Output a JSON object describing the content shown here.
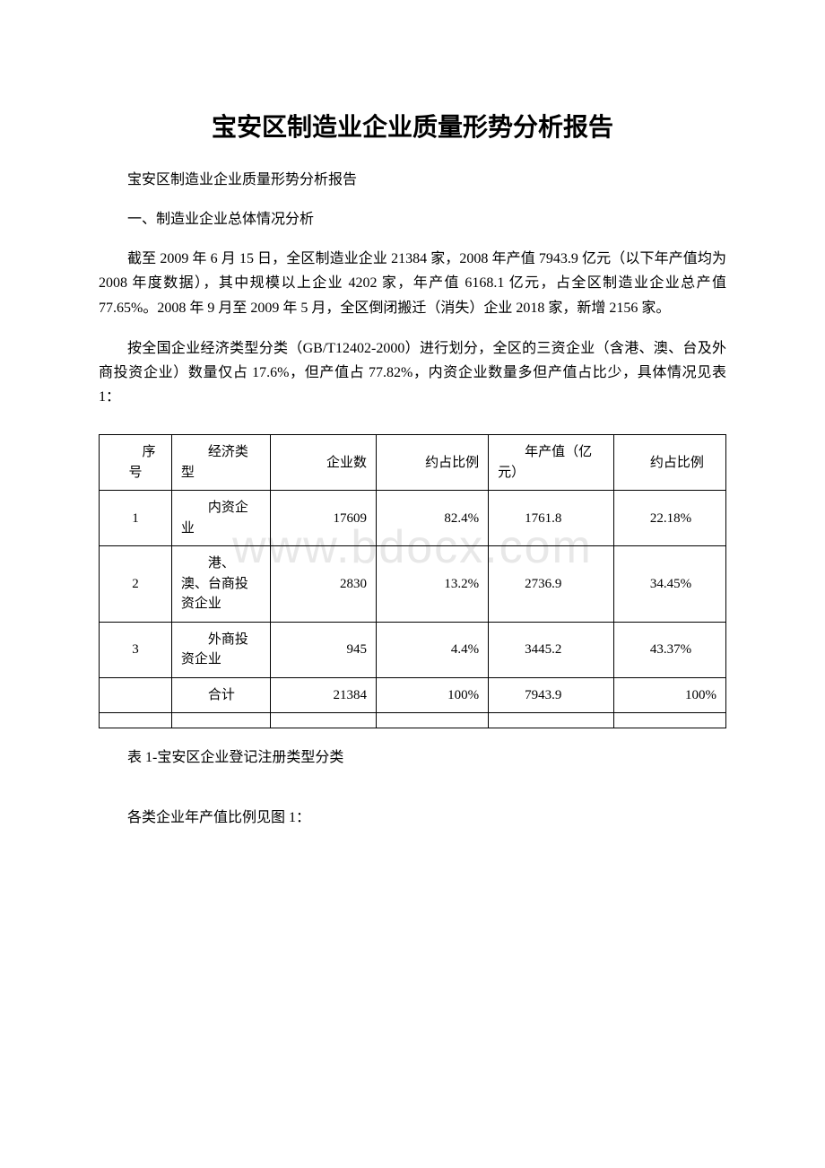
{
  "watermark": "www.bdocx.com",
  "title": "宝安区制造业企业质量形势分析报告",
  "subtitle": "宝安区制造业企业质量形势分析报告",
  "section_heading": "一、制造业企业总体情况分析",
  "paragraph1": "截至 2009 年 6 月 15 日，全区制造业企业 21384 家，2008 年产值 7943.9 亿元（以下年产值均为 2008 年度数据），其中规模以上企业 4202 家，年产值 6168.1 亿元，占全区制造业企业总产值 77.65%。2008 年 9 月至 2009 年 5 月，全区倒闭搬迁（消失）企业 2018 家，新增 2156 家。",
  "paragraph2": "按全国企业经济类型分类（GB/T12402-2000）进行划分，全区的三资企业（含港、澳、台及外商投资企业）数量仅占 17.6%，但产值占 77.82%，内资企业数量多但产值占比少，具体情况见表 1：",
  "table": {
    "columns": [
      "序号",
      "经济类型",
      "企业数",
      "约占比例",
      "年产值（亿元）",
      "约占比例"
    ],
    "rows": [
      [
        "1",
        "内资企业",
        "17609",
        "82.4%",
        "1761.8",
        "22.18%"
      ],
      [
        "2",
        "港、澳、台商投资企业",
        "2830",
        "13.2%",
        "2736.9",
        "34.45%"
      ],
      [
        "3",
        "外商投资企业",
        "945",
        "4.4%",
        "3445.2",
        "43.37%"
      ],
      [
        "",
        "合计",
        "21384",
        "100%",
        "7943.9",
        "100%"
      ],
      [
        "",
        "",
        "",
        "",
        "",
        ""
      ]
    ]
  },
  "table_caption": "表 1-宝安区企业登记注册类型分类",
  "paragraph3": "各类企业年产值比例见图 1："
}
